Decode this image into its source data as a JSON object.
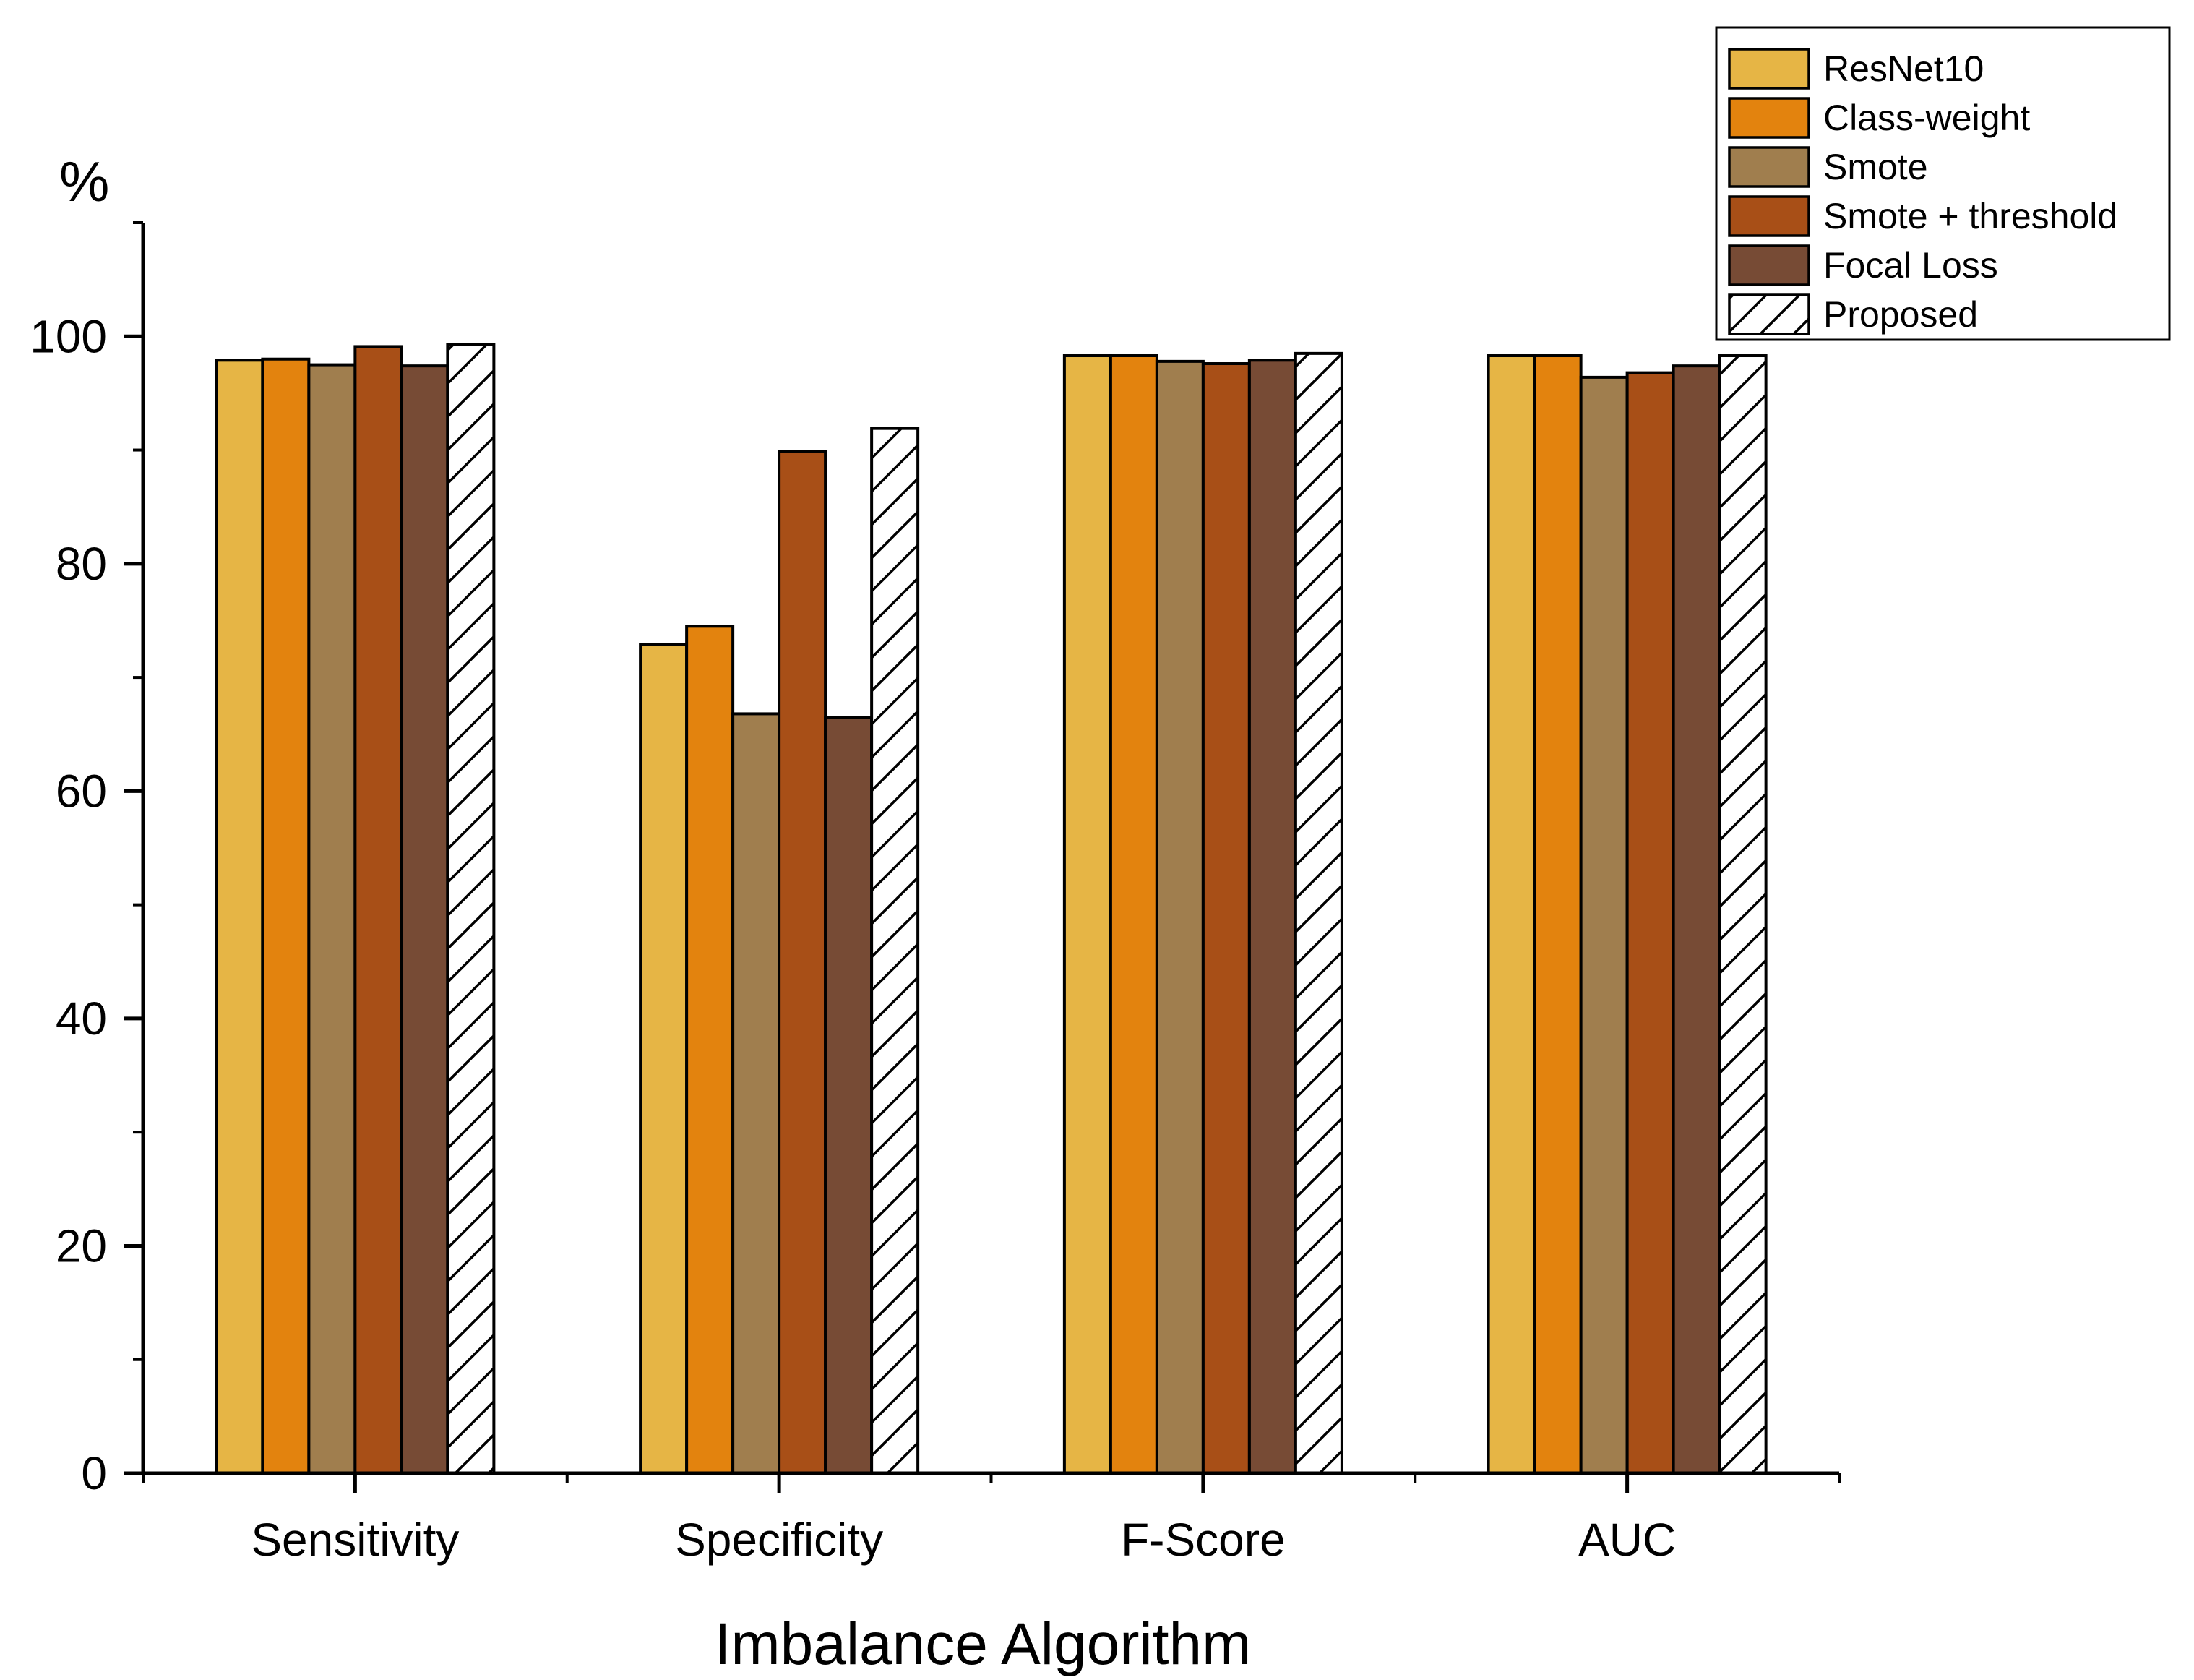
{
  "chart_data": {
    "type": "bar",
    "title": "",
    "xlabel": "Imbalance Algorithm",
    "ylabel": "%",
    "ylim": [
      0,
      110
    ],
    "yticks": [
      0,
      20,
      40,
      60,
      80,
      100
    ],
    "grid": false,
    "legend_position": "top-right",
    "categories": [
      "Sensitivity",
      "Specificity",
      "F-Score",
      "AUC"
    ],
    "series": [
      {
        "name": "ResNet10",
        "color": "#E6B545",
        "pattern": "solid",
        "values": [
          97.9,
          72.9,
          98.3,
          98.3
        ]
      },
      {
        "name": "Class-weight",
        "color": "#E3830E",
        "pattern": "solid",
        "values": [
          98.0,
          74.5,
          98.3,
          98.3
        ]
      },
      {
        "name": "Smote",
        "color": "#A07E4E",
        "pattern": "solid",
        "values": [
          97.5,
          66.8,
          97.8,
          96.4
        ]
      },
      {
        "name": "Smote + threshold",
        "color": "#A84F17",
        "pattern": "solid",
        "values": [
          99.1,
          89.9,
          97.6,
          96.8
        ]
      },
      {
        "name": "Focal Loss",
        "color": "#774B35",
        "pattern": "solid",
        "values": [
          97.4,
          66.5,
          97.9,
          97.4
        ]
      },
      {
        "name": "Proposed",
        "color": "#FFFFFF",
        "pattern": "hatch",
        "values": [
          99.3,
          91.9,
          98.5,
          98.3
        ]
      }
    ]
  }
}
